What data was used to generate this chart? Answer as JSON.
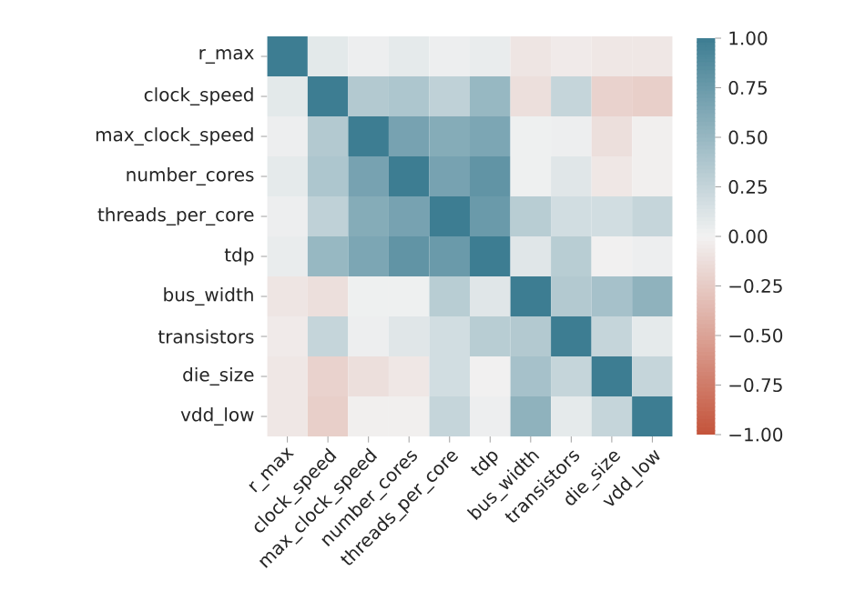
{
  "chart_data": {
    "type": "heatmap",
    "categories": [
      "r_max",
      "clock_speed",
      "max_clock_speed",
      "number_cores",
      "threads_per_core",
      "tdp",
      "bus_width",
      "transistors",
      "die_size",
      "vdd_low"
    ],
    "y_categories": [
      "r_max",
      "clock_speed",
      "max_clock_speed",
      "number_cores",
      "threads_per_core",
      "tdp",
      "bus_width",
      "transistors",
      "die_size",
      "vdd_low"
    ],
    "cells": [
      [
        1,
        0.08,
        0.03,
        0.07,
        0.03,
        0.05,
        -0.08,
        -0.05,
        -0.07,
        -0.07
      ],
      [
        0.08,
        1,
        0.35,
        0.38,
        0.28,
        0.5,
        -0.12,
        0.25,
        -0.2,
        -0.22
      ],
      [
        0.03,
        0.35,
        1,
        0.68,
        0.6,
        0.65,
        0.02,
        0.03,
        -0.12,
        -0.02
      ],
      [
        0.07,
        0.38,
        0.68,
        1,
        0.68,
        0.8,
        0.02,
        0.1,
        -0.07,
        -0.02
      ],
      [
        0.03,
        0.28,
        0.6,
        0.68,
        1,
        0.75,
        0.32,
        0.18,
        0.18,
        0.25
      ],
      [
        0.05,
        0.5,
        0.65,
        0.8,
        0.75,
        1,
        0.1,
        0.32,
        -0.01,
        0.03
      ],
      [
        -0.08,
        -0.12,
        0.02,
        0.02,
        0.32,
        0.1,
        1,
        0.35,
        0.42,
        0.55
      ],
      [
        -0.05,
        0.25,
        0.03,
        0.1,
        0.18,
        0.32,
        0.35,
        1,
        0.25,
        0.07
      ],
      [
        -0.07,
        -0.2,
        -0.12,
        -0.07,
        0.18,
        -0.01,
        0.42,
        0.25,
        1,
        0.25
      ],
      [
        -0.07,
        -0.22,
        -0.02,
        -0.02,
        0.25,
        0.03,
        0.55,
        0.07,
        0.25,
        1
      ]
    ],
    "clim": [
      -1,
      1
    ],
    "cticks": [
      {
        "value": -1,
        "label": "−1.00"
      },
      {
        "value": -0.75,
        "label": "−0.75"
      },
      {
        "value": -0.5,
        "label": "−0.50"
      },
      {
        "value": -0.25,
        "label": "−0.25"
      },
      {
        "value": 0,
        "label": "0.00"
      },
      {
        "value": 0.25,
        "label": "0.25"
      },
      {
        "value": 0.5,
        "label": "0.50"
      },
      {
        "value": 0.75,
        "label": "0.75"
      },
      {
        "value": 1,
        "label": "1.00"
      }
    ]
  }
}
